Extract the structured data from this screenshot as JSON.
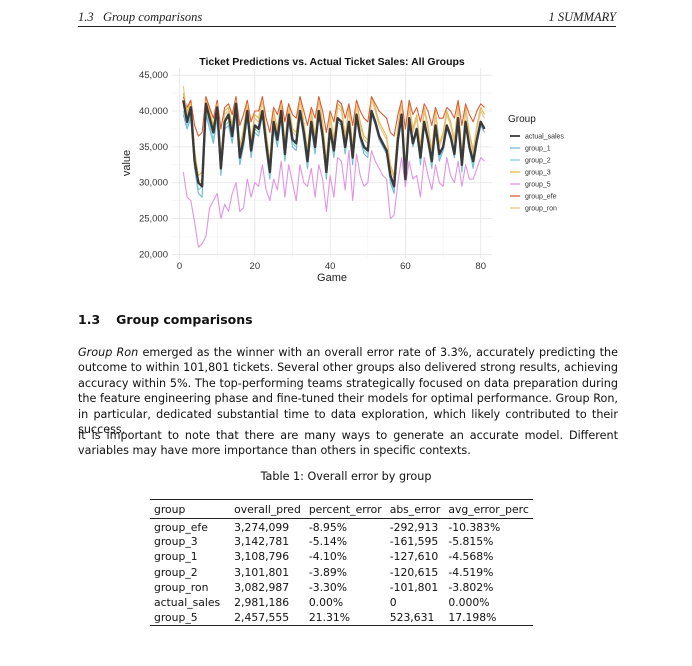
{
  "running_head": {
    "section_num": "1.3",
    "section_name": "Group comparisons",
    "chapter": "1   SUMMARY"
  },
  "section": {
    "number": "1.3",
    "title": "Group comparisons"
  },
  "paragraph1": {
    "winner_name": "Group Ron",
    "text": " emerged as the winner with an overall error rate of 3.3%, accurately predicting the outcome to within 101,801 tickets. Several other groups also delivered strong results, achieving accuracy within 5%. The top-performing teams strategically focused on data preparation during the feature engineering phase and fine-tuned their models for optimal performance.  Group Ron, in particular, dedicated substantial time to data exploration, which likely contributed to their success."
  },
  "paragraph2": "It is important to note that there are many ways to generate an accurate model. Different variables may have more importance than others in specific contexts.",
  "table": {
    "caption": "Table 1: Overall error by group",
    "headers": [
      "group",
      "overall_pred",
      "percent_error",
      "abs_error",
      "avg_error_perc"
    ],
    "rows": [
      [
        "group_efe",
        "3,274,099",
        "-8.95%",
        "-292,913",
        "-10.383%"
      ],
      [
        "group_3",
        "3,142,781",
        "-5.14%",
        "-161,595",
        "-5.815%"
      ],
      [
        "group_1",
        "3,108,796",
        "-4.10%",
        "-127,610",
        "-4.568%"
      ],
      [
        "group_2",
        "3,101,801",
        "-3.89%",
        "-120,615",
        "-4.519%"
      ],
      [
        "group_ron",
        "3,082,987",
        "-3.30%",
        "-101,801",
        "-3.802%"
      ],
      [
        "actual_sales",
        "2,981,186",
        "0.00%",
        "0",
        "0.000%"
      ],
      [
        "group_5",
        "2,457,555",
        "21.31%",
        "523,631",
        "17.198%"
      ]
    ]
  },
  "chart_data": {
    "type": "line",
    "title": "Ticket Predictions vs. Actual Ticket Sales: All Groups",
    "xlabel": "Game",
    "ylabel": "value",
    "xlim": [
      -2,
      83
    ],
    "ylim": [
      19500,
      46000
    ],
    "x_ticks": [
      0,
      20,
      40,
      60,
      80
    ],
    "y_ticks": [
      20000,
      25000,
      30000,
      35000,
      40000,
      45000
    ],
    "y_tick_labels": [
      "20,000",
      "25,000",
      "30,000",
      "35,000",
      "40,000",
      "45,000"
    ],
    "grid": true,
    "legend_title": "Group",
    "legend_position": "right",
    "x": [
      1,
      2,
      3,
      4,
      5,
      6,
      7,
      8,
      9,
      10,
      11,
      12,
      13,
      14,
      15,
      16,
      17,
      18,
      19,
      20,
      21,
      22,
      23,
      24,
      25,
      26,
      27,
      28,
      29,
      30,
      31,
      32,
      33,
      34,
      35,
      36,
      37,
      38,
      39,
      40,
      41,
      42,
      43,
      44,
      45,
      46,
      47,
      48,
      49,
      50,
      51,
      52,
      53,
      54,
      55,
      56,
      57,
      58,
      59,
      60,
      61,
      62,
      63,
      64,
      65,
      66,
      67,
      68,
      69,
      70,
      71,
      72,
      73,
      74,
      75,
      76,
      77,
      78,
      79,
      80,
      81
    ],
    "series": [
      {
        "name": "actual_sales",
        "color": "#3a3a3a",
        "values": [
          41500,
          38500,
          40500,
          33000,
          30000,
          29500,
          41000,
          39000,
          37000,
          40500,
          32000,
          38500,
          39500,
          36500,
          41000,
          33500,
          36000,
          40000,
          34500,
          38000,
          37500,
          40000,
          35500,
          31500,
          38500,
          36000,
          40000,
          34000,
          39500,
          36000,
          35500,
          40000,
          37000,
          33000,
          38500,
          35000,
          40000,
          36500,
          31500,
          37500,
          34500,
          39000,
          38500,
          35000,
          38500,
          33500,
          39500,
          36500,
          35000,
          34500,
          40000,
          38500,
          36500,
          35500,
          34500,
          31000,
          29500,
          36000,
          39500,
          30500,
          39000,
          35500,
          37500,
          33500,
          38500,
          36000,
          33000,
          38000,
          34000,
          35000,
          38000,
          36500,
          34000,
          39000,
          32500,
          38500,
          35000,
          33000,
          36000,
          38500,
          37500
        ]
      },
      {
        "name": "group_1",
        "color": "#6ab0d8",
        "values": [
          39500,
          37500,
          39000,
          32000,
          28500,
          28000,
          39500,
          37500,
          35500,
          39000,
          31000,
          37500,
          38000,
          35500,
          39500,
          32500,
          35000,
          39000,
          33500,
          37000,
          36500,
          39500,
          34500,
          30500,
          37500,
          35000,
          39000,
          33000,
          38500,
          35000,
          34500,
          39500,
          36000,
          32000,
          37500,
          34000,
          39500,
          36000,
          30500,
          37000,
          33500,
          38500,
          38000,
          34000,
          38000,
          32500,
          39000,
          36000,
          34000,
          33500,
          39500,
          38000,
          36000,
          35000,
          34000,
          30000,
          28500,
          35500,
          39000,
          29500,
          38500,
          35000,
          37000,
          32500,
          38000,
          35500,
          32000,
          37500,
          33000,
          34500,
          37500,
          36000,
          33500,
          38500,
          31500,
          38000,
          34500,
          32000,
          35500,
          38000,
          37000
        ]
      },
      {
        "name": "group_2",
        "color": "#7ccfcf",
        "values": [
          40000,
          38000,
          39500,
          32500,
          29000,
          29500,
          40000,
          38000,
          36000,
          39500,
          31500,
          38000,
          38500,
          36000,
          40000,
          33000,
          35500,
          39500,
          34000,
          37500,
          37000,
          40000,
          35000,
          31000,
          38000,
          35500,
          39500,
          33500,
          39000,
          35500,
          35000,
          40000,
          36500,
          32500,
          38000,
          34500,
          40000,
          36500,
          31000,
          37500,
          34000,
          39000,
          38500,
          34500,
          38500,
          33000,
          39500,
          36500,
          34500,
          34000,
          40000,
          38500,
          36500,
          35500,
          34500,
          30500,
          29000,
          36000,
          39500,
          30000,
          39000,
          35500,
          37500,
          33000,
          38500,
          36000,
          32500,
          38000,
          33500,
          35000,
          38000,
          36500,
          34000,
          39000,
          32000,
          38500,
          35000,
          32500,
          36000,
          38500,
          37500
        ]
      },
      {
        "name": "group_3",
        "color": "#e0b33a",
        "values": [
          42500,
          40000,
          41500,
          34500,
          31000,
          31500,
          42000,
          40000,
          38000,
          41500,
          33500,
          40000,
          40500,
          38000,
          42000,
          35000,
          37500,
          41500,
          36000,
          39500,
          39000,
          42000,
          37000,
          33000,
          40000,
          37500,
          41500,
          35500,
          41000,
          37500,
          37000,
          42000,
          38500,
          34500,
          40000,
          36500,
          42000,
          38500,
          33000,
          39500,
          36000,
          41000,
          40500,
          36500,
          40500,
          35000,
          41500,
          38500,
          36500,
          36000,
          42000,
          40500,
          38500,
          37500,
          36500,
          32500,
          31000,
          38000,
          41500,
          32000,
          41000,
          37500,
          39500,
          35000,
          40500,
          38000,
          34500,
          40000,
          35500,
          37000,
          40000,
          38500,
          36000,
          41000,
          34000,
          40500,
          37000,
          34500,
          38000,
          40500,
          39500
        ]
      },
      {
        "name": "group_5",
        "color": "#dd8fe0",
        "values": [
          31500,
          28000,
          27500,
          24500,
          21000,
          21500,
          22500,
          26500,
          27500,
          28500,
          25000,
          27000,
          26000,
          28500,
          30000,
          26000,
          26500,
          30500,
          28000,
          30000,
          29500,
          32500,
          29000,
          27500,
          30500,
          29000,
          33000,
          28000,
          32500,
          30000,
          27500,
          32500,
          30000,
          29500,
          32000,
          28000,
          32500,
          30500,
          26000,
          31000,
          28000,
          33500,
          33000,
          29000,
          34500,
          27500,
          34000,
          31000,
          29500,
          30000,
          34500,
          33000,
          32000,
          31000,
          30500,
          25000,
          25500,
          30000,
          33500,
          29500,
          33000,
          30500,
          31000,
          28000,
          33500,
          31000,
          29000,
          32500,
          30000,
          29500,
          33500,
          31000,
          30000,
          33000,
          29500,
          32500,
          30500,
          30500,
          32000,
          33500,
          33000
        ]
      },
      {
        "name": "group_efe",
        "color": "#d9532b",
        "values": [
          42000,
          40500,
          41500,
          38000,
          36500,
          37000,
          42000,
          40500,
          39000,
          41500,
          37500,
          40500,
          41000,
          39500,
          42000,
          38000,
          39500,
          41500,
          38500,
          40000,
          40000,
          42000,
          39000,
          37000,
          40500,
          39500,
          41500,
          38500,
          41000,
          39500,
          39000,
          42000,
          40000,
          38000,
          40500,
          39000,
          42000,
          40000,
          37000,
          40000,
          38500,
          41500,
          41000,
          39000,
          41000,
          38000,
          41500,
          40000,
          39000,
          38500,
          42000,
          41000,
          40000,
          39500,
          39000,
          37000,
          36500,
          39500,
          41500,
          37500,
          41500,
          39500,
          40500,
          38500,
          41000,
          40000,
          38000,
          40500,
          39000,
          39000,
          40500,
          40000,
          39000,
          41500,
          38000,
          41000,
          39500,
          38500,
          40000,
          41000,
          40500
        ]
      },
      {
        "name": "group_ron",
        "color": "#e8c07a",
        "values": [
          43500,
          39500,
          41000,
          34000,
          30000,
          30500,
          41500,
          39500,
          37500,
          41000,
          33000,
          39500,
          40000,
          37000,
          41500,
          34500,
          37000,
          41000,
          35500,
          39000,
          38500,
          41500,
          36500,
          32500,
          39500,
          37000,
          41000,
          35000,
          40500,
          37000,
          36500,
          41500,
          38000,
          34000,
          39500,
          36000,
          41500,
          38000,
          32500,
          39000,
          35500,
          40500,
          40000,
          36000,
          40000,
          34500,
          41000,
          38000,
          36000,
          35500,
          41500,
          40000,
          38000,
          37000,
          36000,
          32000,
          30500,
          37500,
          41000,
          31500,
          40500,
          37000,
          39000,
          34500,
          40000,
          37500,
          34000,
          39500,
          35000,
          36500,
          39500,
          38000,
          35500,
          40500,
          33500,
          40000,
          36500,
          34000,
          37500,
          40000,
          39000
        ]
      }
    ]
  }
}
